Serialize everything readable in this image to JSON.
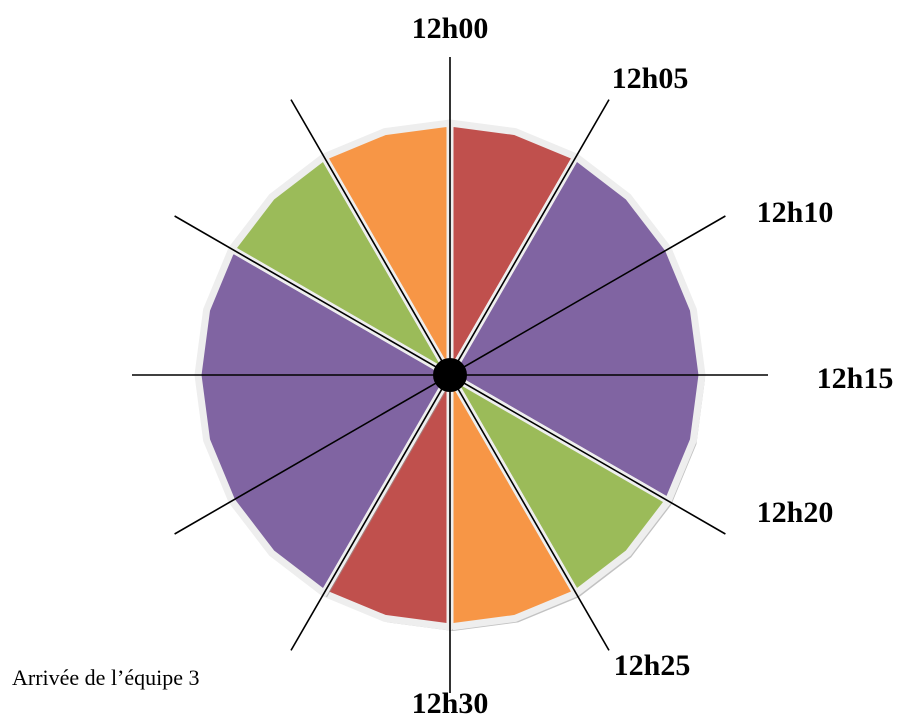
{
  "labels": [
    "12h00",
    "12h05",
    "12h10",
    "12h15",
    "12h20",
    "12h25",
    "12h30"
  ],
  "caption": "Arrivée de l’équipe 3"
}
